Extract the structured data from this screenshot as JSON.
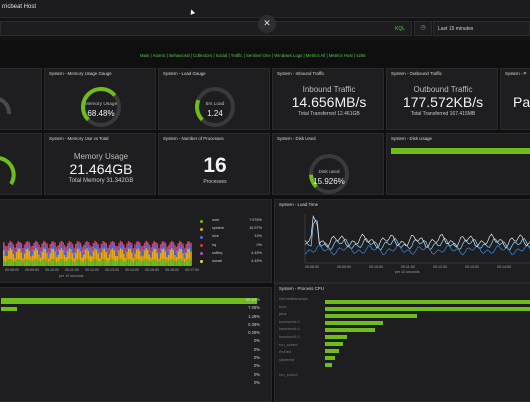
{
  "header": {
    "title": "rricbeat Host"
  },
  "search": {
    "placeholder": "",
    "kql": "KQL"
  },
  "time": {
    "label": "Last 15 minutes"
  },
  "nav_links": "Main | Atomic | Behavioral | Collectors | Social | Traffic | Sentinel One | Windows Logs | Metrics All | Metrics Host | s265",
  "panels": {
    "mem_gauge": {
      "title": "System - Memory Usage Gauge",
      "label": "Memory Usage",
      "value": "68.48%",
      "fraction": 0.6848
    },
    "load_gauge": {
      "title": "System - Load Gauge",
      "label": "5m Load",
      "value": "1.24",
      "fraction": 0.25
    },
    "inbound": {
      "title": "System - Inbound Traffic",
      "label": "Inbound Traffic",
      "value": "14.656MB/s",
      "sub": "Total Transferred 12.461GB"
    },
    "outbound": {
      "title": "System - Outbound Traffic",
      "label": "Outbound Traffic",
      "value": "177.572KB/s",
      "sub": "Total Transferred 167.415MB"
    },
    "right_cut": {
      "title": "System - P",
      "label": "Pa"
    },
    "mem_total": {
      "title": "System - Memory Use vs Total",
      "label": "Memory Usage",
      "value": "21.464GB",
      "sub": "Total Memory 31.342GB"
    },
    "processes": {
      "title": "System - Number of Processes",
      "value": "16",
      "label": "Processes"
    },
    "disk_used": {
      "title": "System - Disk Used",
      "label": "Disk used",
      "value": "15.926%",
      "fraction": 0.159
    },
    "disk_usage": {
      "title": "System - Disk Usage"
    },
    "load_time": {
      "title": "System - Load Time",
      "xlabel": "per 10 seconds"
    },
    "cpu_chart": {
      "xlabel": "per 10 seconds"
    },
    "process_cpu": {
      "title": "System - Process CPU"
    }
  },
  "cpu_legend": [
    {
      "name": "user",
      "value": "7.976%",
      "color": "#6fbd1c"
    },
    {
      "name": "system",
      "value": "16.97%",
      "color": "#e7a517"
    },
    {
      "name": "nice",
      "value": "14%",
      "color": "#4b6be0"
    },
    {
      "name": "irq",
      "value": "0%",
      "color": "#d93a3a"
    },
    {
      "name": "softirq",
      "value": "4.45%",
      "color": "#b04fc8"
    },
    {
      "name": "iowait",
      "value": "4.45%",
      "color": "#dfdf3a"
    }
  ],
  "time_ticks": [
    "00:08:00",
    "00:09:00",
    "00:10:00",
    "00:11:00",
    "00:12:00",
    "00:13:00",
    "00:14:00",
    "00:15:00",
    "00:16:00",
    "00:17:00"
  ],
  "time_ticks_right": [
    "00:08:00",
    "00:09:00",
    "00:10:00",
    "00:11:00",
    "00:12:00",
    "00:13:00",
    "00:14:00"
  ],
  "bottom_pcts": [
    "55.64%",
    "7.08%",
    "1.29%",
    "0.39%",
    "0.29%",
    "0%",
    "0%",
    "0%",
    "0%",
    "0%",
    "0%"
  ],
  "process_names": [
    "Gemelthonwhpe",
    "hoci",
    "java",
    "kworker/d:2",
    "kworker/d:4",
    "kworker/4:3",
    "rcu_sched",
    "rhv0ed",
    "systemd",
    "",
    "rcu_sched"
  ],
  "colors": {
    "accent": "#6fbd1c",
    "panel": "#1e1e20",
    "bg": "#0f0f10"
  }
}
